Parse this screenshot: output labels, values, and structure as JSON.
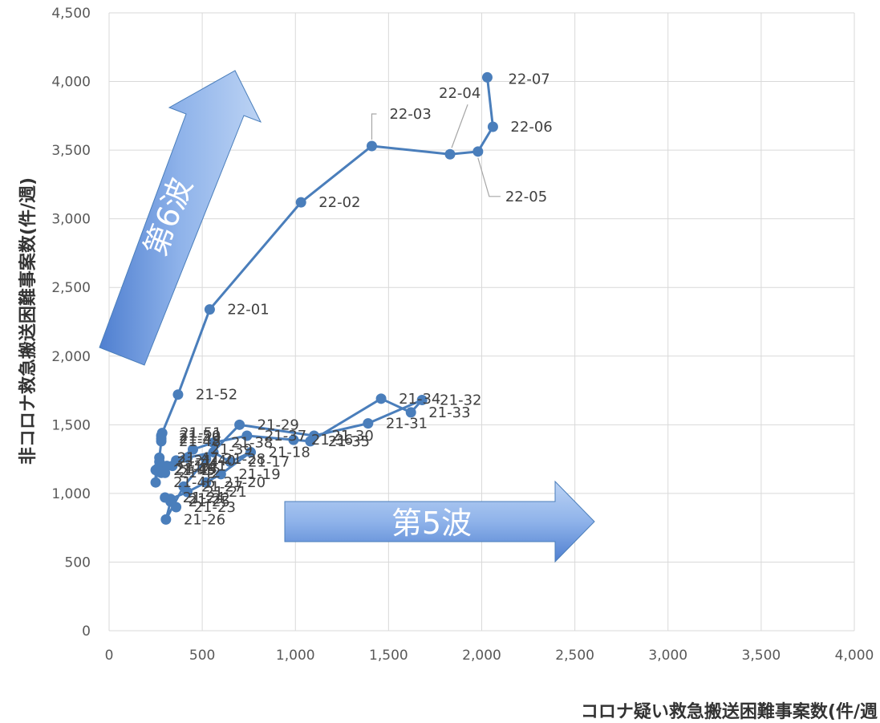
{
  "chart_data": {
    "type": "scatter",
    "xlabel": "コロナ疑い救急搬送困難事案数(件/週",
    "ylabel": "非コロナ救急搬送困難事案数(件/週)",
    "xlim": [
      0,
      4000
    ],
    "ylim": [
      0,
      4500
    ],
    "x_ticks": [
      "0",
      "500",
      "1,000",
      "1,500",
      "2,000",
      "2,500",
      "3,000",
      "3,500",
      "4,000"
    ],
    "y_ticks": [
      "0",
      "500",
      "1,000",
      "1,500",
      "2,000",
      "2,500",
      "3,000",
      "3,500",
      "4,000",
      "4,500"
    ],
    "grid": true,
    "line_color": "#4a7ebb",
    "annotations": {
      "wave5": "第5波",
      "wave6": "第6波"
    },
    "series": [
      {
        "points": [
          {
            "x": 260,
            "y": 1180,
            "label": "21-14"
          },
          {
            "x": 300,
            "y": 1150,
            "label": ""
          },
          {
            "x": 340,
            "y": 1200,
            "label": ""
          },
          {
            "x": 420,
            "y": 1260,
            "label": ""
          },
          {
            "x": 560,
            "y": 1300,
            "label": ""
          },
          {
            "x": 650,
            "y": 1230,
            "label": "21-17"
          },
          {
            "x": 760,
            "y": 1300,
            "label": "21-18"
          },
          {
            "x": 600,
            "y": 1140,
            "label": "21-19"
          },
          {
            "x": 520,
            "y": 1080,
            "label": "21-20"
          },
          {
            "x": 420,
            "y": 1010,
            "label": "21-21"
          },
          {
            "x": 330,
            "y": 960,
            "label": "21-22"
          },
          {
            "x": 360,
            "y": 900,
            "label": "21-23"
          },
          {
            "x": 300,
            "y": 970,
            "label": "21-24"
          },
          {
            "x": 330,
            "y": 940,
            "label": "21-25"
          },
          {
            "x": 305,
            "y": 810,
            "label": "21-26"
          },
          {
            "x": 400,
            "y": 1050,
            "label": "21-27"
          },
          {
            "x": 520,
            "y": 1250,
            "label": "21-28"
          },
          {
            "x": 700,
            "y": 1500,
            "label": "21-29"
          },
          {
            "x": 1100,
            "y": 1420,
            "label": "21-30"
          },
          {
            "x": 1390,
            "y": 1510,
            "label": "21-31"
          },
          {
            "x": 1680,
            "y": 1680,
            "label": "21-32"
          },
          {
            "x": 1620,
            "y": 1590,
            "label": "21-33"
          },
          {
            "x": 1460,
            "y": 1690,
            "label": "21-34"
          },
          {
            "x": 1080,
            "y": 1380,
            "label": "21-35"
          },
          {
            "x": 990,
            "y": 1390,
            "label": "21-36"
          },
          {
            "x": 740,
            "y": 1420,
            "label": "21-37"
          },
          {
            "x": 560,
            "y": 1370,
            "label": "21-38"
          },
          {
            "x": 450,
            "y": 1320,
            "label": "21-39"
          },
          {
            "x": 360,
            "y": 1240,
            "label": "21-40"
          },
          {
            "x": 310,
            "y": 1200,
            "label": "21-41"
          },
          {
            "x": 280,
            "y": 1150,
            "label": "21-42"
          },
          {
            "x": 260,
            "y": 1180,
            "label": "21-43"
          },
          {
            "x": 270,
            "y": 1230,
            "label": "21-44"
          },
          {
            "x": 250,
            "y": 1170,
            "label": "21-45"
          },
          {
            "x": 250,
            "y": 1080,
            "label": "21-46"
          },
          {
            "x": 270,
            "y": 1260,
            "label": "21-47"
          },
          {
            "x": 280,
            "y": 1380,
            "label": "21-48"
          },
          {
            "x": 280,
            "y": 1400,
            "label": "21-49"
          },
          {
            "x": 280,
            "y": 1420,
            "label": "21-50"
          },
          {
            "x": 285,
            "y": 1440,
            "label": "21-51"
          },
          {
            "x": 370,
            "y": 1720,
            "label": "21-52"
          },
          {
            "x": 540,
            "y": 2340,
            "label": "22-01"
          },
          {
            "x": 1030,
            "y": 3120,
            "label": "22-02"
          },
          {
            "x": 1410,
            "y": 3530,
            "label": "22-03"
          },
          {
            "x": 1830,
            "y": 3470,
            "label": "22-04"
          },
          {
            "x": 1980,
            "y": 3490,
            "label": "22-05"
          },
          {
            "x": 2060,
            "y": 3670,
            "label": "22-06"
          },
          {
            "x": 2030,
            "y": 4030,
            "label": "22-07"
          }
        ]
      }
    ]
  }
}
